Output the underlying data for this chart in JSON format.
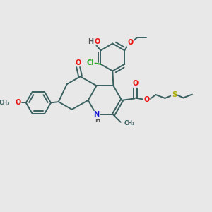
{
  "bg_color": "#e8e8e8",
  "bond_color": "#3a6060",
  "bond_lw": 1.4,
  "atom_colors": {
    "O": "#ee1111",
    "N": "#1111cc",
    "Cl": "#22aa22",
    "S": "#aaaa00",
    "H": "#555555",
    "C": "#3a6060"
  },
  "font_size": 7.0
}
